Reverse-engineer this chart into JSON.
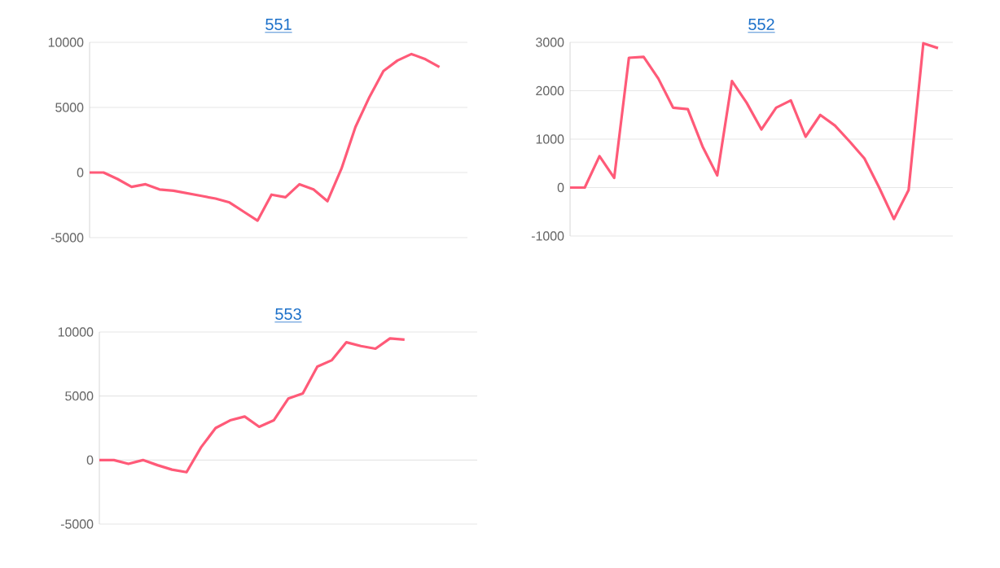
{
  "chart_data": [
    {
      "type": "line",
      "title": "551",
      "color": "#ff5a78",
      "marker": "none",
      "grid": "y",
      "ylim": [
        -5000,
        10000
      ],
      "yticks": [
        -5000,
        0,
        5000,
        10000
      ],
      "categories": [
        null,
        null,
        null,
        null,
        null,
        null,
        null,
        null,
        null,
        null,
        null,
        null,
        null,
        null,
        null,
        null,
        null,
        null,
        null,
        null,
        null,
        null,
        null,
        null,
        null,
        null,
        null,
        null
      ],
      "values": [
        0,
        0,
        -500,
        -1100,
        -900,
        -1300,
        -1400,
        -1600,
        -1800,
        -2000,
        -2300,
        -3000,
        -3700,
        -1700,
        -1900,
        -900,
        -1300,
        -2200,
        300,
        3500,
        5800,
        7800,
        8600,
        9100,
        8700,
        8100,
        null,
        null
      ]
    },
    {
      "type": "line",
      "title": "552",
      "color": "#ff5a78",
      "marker": "none",
      "grid": "y",
      "ylim": [
        -1000,
        3000
      ],
      "yticks": [
        -1000,
        0,
        1000,
        2000,
        3000
      ],
      "categories": [
        null,
        null,
        null,
        null,
        null,
        null,
        null,
        null,
        null,
        null,
        null,
        null,
        null,
        null,
        null,
        null,
        null,
        null,
        null,
        null,
        null,
        null,
        null,
        null,
        null,
        null,
        null
      ],
      "values": [
        0,
        0,
        650,
        200,
        2680,
        2700,
        2250,
        1650,
        1620,
        850,
        250,
        2200,
        1750,
        1200,
        1650,
        1800,
        1050,
        1500,
        1280,
        950,
        600,
        0,
        -650,
        -50,
        2980,
        2880,
        null
      ]
    },
    {
      "type": "line",
      "title": "553",
      "color": "#ff5a78",
      "marker": "none",
      "grid": "y",
      "ylim": [
        -5000,
        10000
      ],
      "yticks": [
        -5000,
        0,
        5000,
        10000
      ],
      "categories": [
        null,
        null,
        null,
        null,
        null,
        null,
        null,
        null,
        null,
        null,
        null,
        null,
        null,
        null,
        null,
        null,
        null,
        null,
        null,
        null,
        null,
        null,
        null,
        null,
        null,
        null,
        null
      ],
      "values": [
        0,
        0,
        -300,
        0,
        -400,
        -750,
        -950,
        1000,
        2500,
        3100,
        3400,
        2600,
        3100,
        4800,
        5200,
        7300,
        7800,
        9200,
        8900,
        8700,
        9500,
        9400,
        null,
        null,
        null,
        null,
        null
      ]
    }
  ]
}
